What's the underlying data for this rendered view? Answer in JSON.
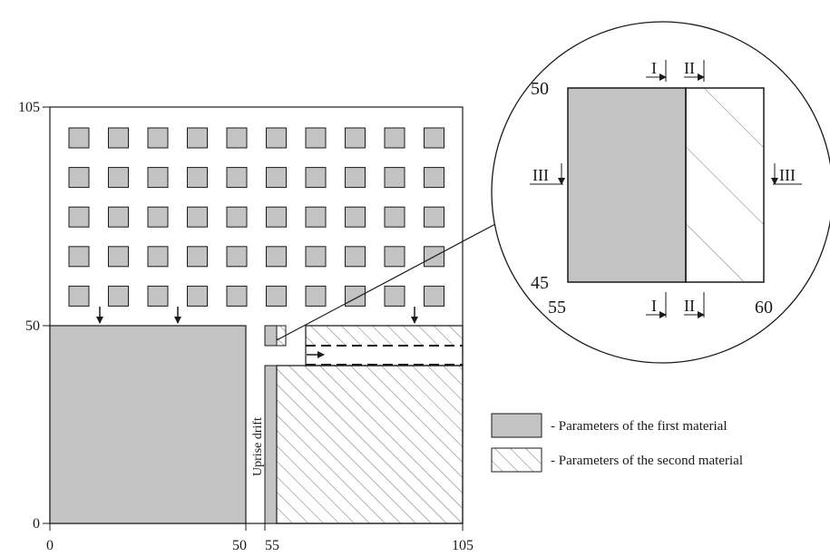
{
  "axes": {
    "y_tick_105": "105",
    "y_tick_50": "50",
    "y_tick_0": "0",
    "x_tick_0": "0",
    "x_tick_50": "50",
    "x_tick_55": "55",
    "x_tick_105": "105"
  },
  "labels": {
    "uprise_drift": "Uprise drift"
  },
  "inset": {
    "y_top": "50",
    "y_bottom": "45",
    "x_left": "55",
    "x_right": "60",
    "section_I_top": "I",
    "section_II_top": "II",
    "section_I_bottom": "I",
    "section_II_bottom": "II",
    "section_III_left": "III",
    "section_III_right": "III"
  },
  "legend": {
    "first_material": "- Parameters of the first material",
    "second_material": "- Parameters of the second material"
  },
  "colors": {
    "first_material_fill": "#c3c3c3",
    "line": "#1a1a1a"
  }
}
